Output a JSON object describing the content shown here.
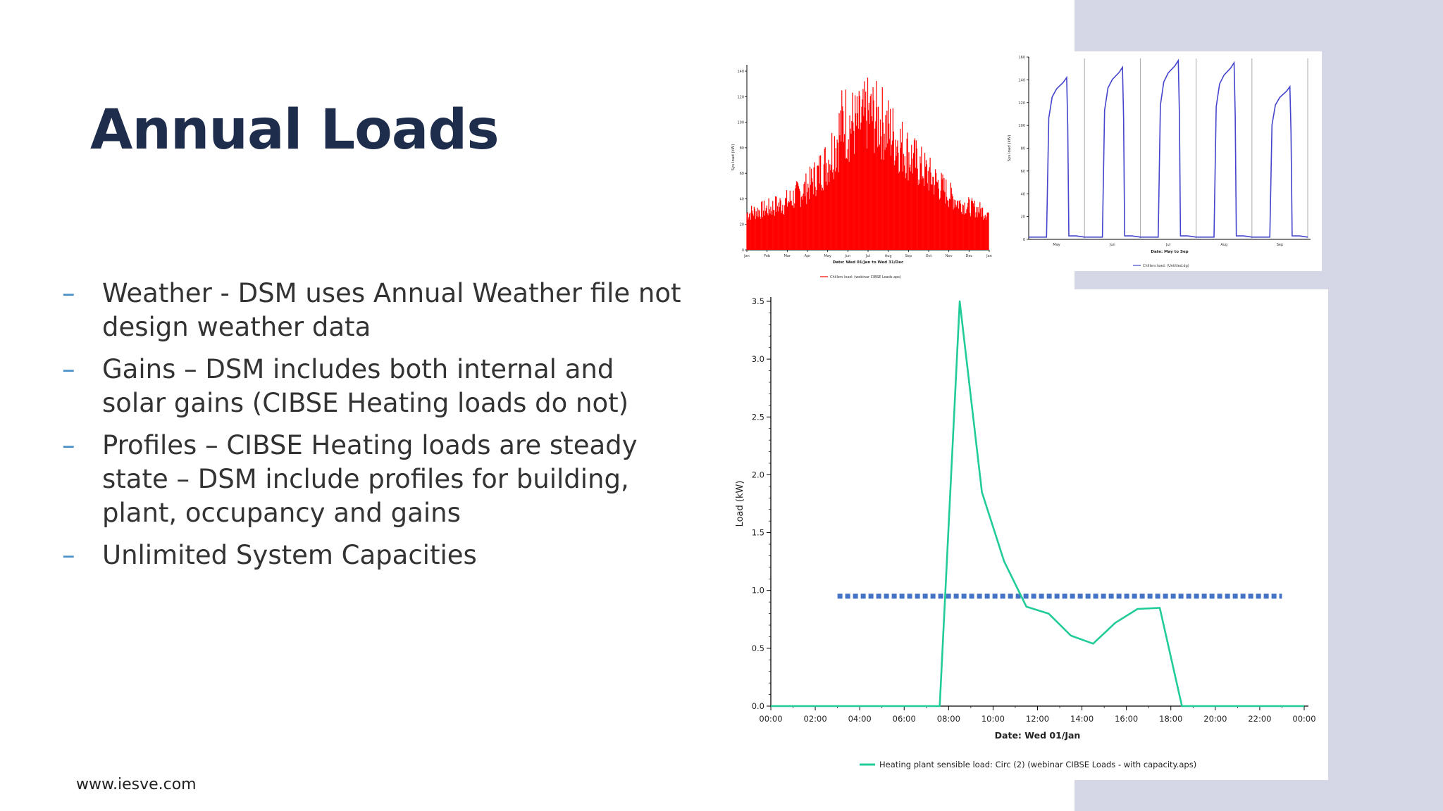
{
  "title": "Annual Loads",
  "bullets": [
    {
      "text": "Weather -  DSM uses Annual Weather file not design weather data"
    },
    {
      "text": "Gains – DSM includes both internal and solar gains (CIBSE Heating loads do not)"
    },
    {
      "text": "Profiles – CIBSE Heating loads are steady state – DSM include profiles for building, plant, occupancy and gains"
    },
    {
      "text": "Unlimited System Capacities"
    }
  ],
  "bullet_marker": "–",
  "footer": "www.iesve.com",
  "colors": {
    "title": "#1f2d4d",
    "band": "#d5d7e6",
    "annual": "#ff0000",
    "weekly": "#4444cc",
    "heating": "#22cc99",
    "capacity": "#4472c4"
  },
  "chart_data": [
    {
      "type": "area",
      "series": [
        {
          "name": "Chillers load:  (webinar CIBSE Loads.aps)"
        }
      ],
      "xlabel": "Date: Wed 01/Jan to Wed 31/Dec",
      "ylabel": "Sys load (kW)",
      "x_ticks": [
        "Jan",
        "Feb",
        "Mar",
        "Apr",
        "May",
        "Jun",
        "Jul",
        "Aug",
        "Sep",
        "Oct",
        "Nov",
        "Dec",
        "Jan"
      ],
      "y_ticks": [
        "0",
        "20",
        "40",
        "60",
        "80",
        "100",
        "120",
        "140"
      ],
      "ylim": [
        0,
        145
      ],
      "envelope_peak": [
        {
          "month": 0,
          "kw": 35
        },
        {
          "month": 1,
          "kw": 40
        },
        {
          "month": 2,
          "kw": 48
        },
        {
          "month": 3,
          "kw": 62
        },
        {
          "month": 4,
          "kw": 90
        },
        {
          "month": 4.8,
          "kw": 135
        },
        {
          "month": 5.5,
          "kw": 125
        },
        {
          "month": 6,
          "kw": 137
        },
        {
          "month": 6.7,
          "kw": 130
        },
        {
          "month": 7.5,
          "kw": 110
        },
        {
          "month": 8.5,
          "kw": 85
        },
        {
          "month": 9.5,
          "kw": 65
        },
        {
          "month": 10.5,
          "kw": 45
        },
        {
          "month": 12,
          "kw": 35
        }
      ],
      "envelope_base": [
        {
          "month": 0,
          "kw": 18
        },
        {
          "month": 2,
          "kw": 20
        },
        {
          "month": 4,
          "kw": 35
        },
        {
          "month": 6,
          "kw": 55
        },
        {
          "month": 8,
          "kw": 38
        },
        {
          "month": 10,
          "kw": 25
        },
        {
          "month": 12,
          "kw": 18
        }
      ]
    },
    {
      "type": "line",
      "series": [
        {
          "name": "Chillers load:  (Untitled.dg)"
        }
      ],
      "xlabel": "Date: May to Sep",
      "ylabel": "Sys load (kW)",
      "x_ticks": [
        "May",
        "Jun",
        "Jul",
        "Aug",
        "Sep"
      ],
      "y_ticks": [
        "0",
        "20",
        "40",
        "60",
        "80",
        "100",
        "120",
        "140",
        "160"
      ],
      "ylim": [
        0,
        160
      ],
      "daily_peaks": [
        142,
        151,
        157,
        155,
        134
      ]
    },
    {
      "type": "line",
      "series": [
        {
          "name": "Heating plant sensible load: Circ (2) (webinar CIBSE Loads - with capacity.aps)",
          "x": [
            0,
            7.6,
            8.5,
            9.5,
            10.5,
            11.5,
            12.5,
            13.5,
            14.5,
            15.5,
            16.5,
            17.5,
            18.5,
            24
          ],
          "y": [
            0,
            0,
            3.5,
            1.85,
            1.25,
            0.86,
            0.8,
            0.61,
            0.54,
            0.72,
            0.84,
            0.85,
            0,
            0
          ]
        },
        {
          "name": "",
          "x": [
            3,
            23
          ],
          "y": [
            0.95,
            0.95
          ]
        }
      ],
      "xlabel": "Date: Wed 01/Jan",
      "ylabel": "Load (kW)",
      "x_ticks": [
        "00:00",
        "02:00",
        "04:00",
        "06:00",
        "08:00",
        "10:00",
        "12:00",
        "14:00",
        "16:00",
        "18:00",
        "20:00",
        "22:00",
        "00:00"
      ],
      "y_ticks": [
        "0.0",
        "0.5",
        "1.0",
        "1.5",
        "2.0",
        "2.5",
        "3.0",
        "3.5"
      ],
      "xlim": [
        0,
        24
      ],
      "ylim": [
        0,
        3.5
      ]
    }
  ]
}
